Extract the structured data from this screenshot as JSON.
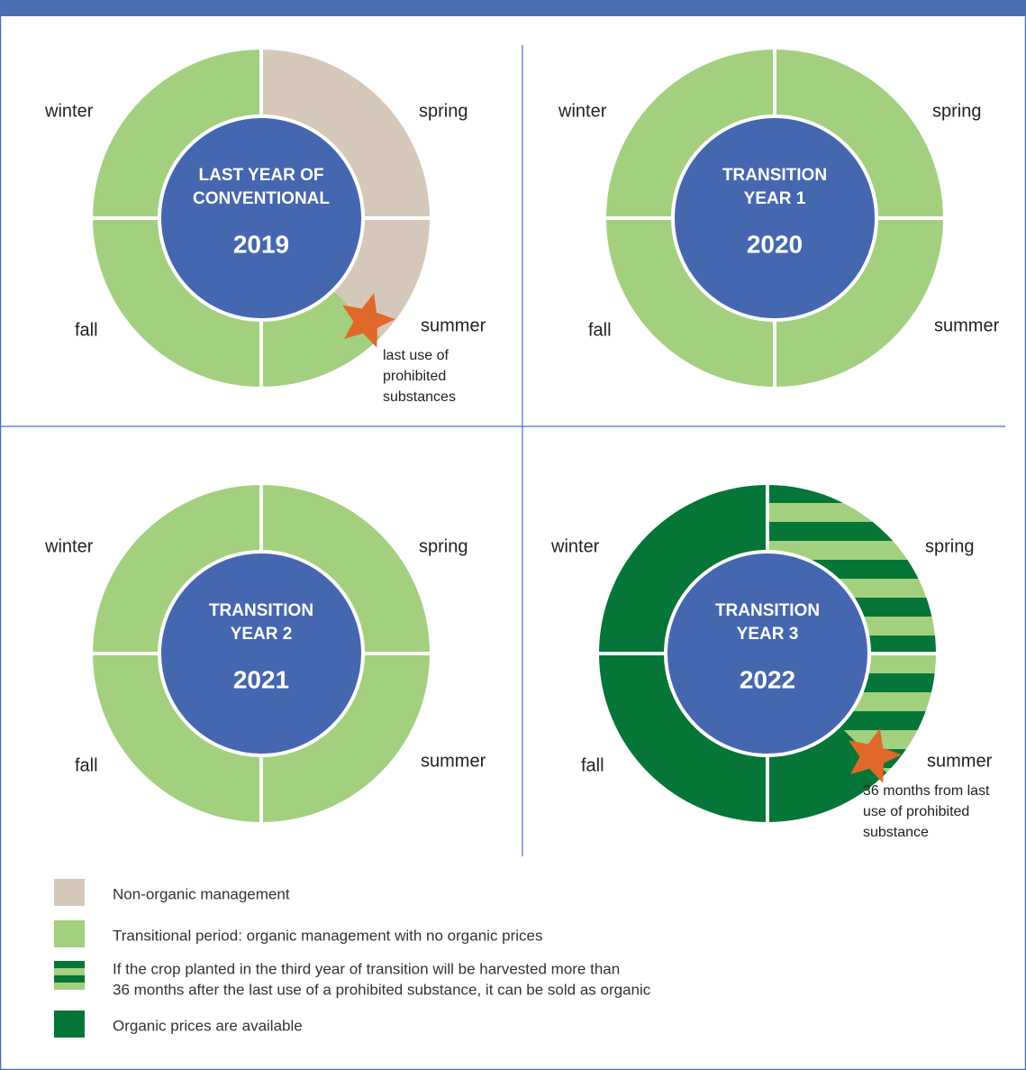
{
  "panels": [
    {
      "title": [
        "LAST YEAR OF",
        "CONVENTIONAL"
      ],
      "year": "2019",
      "seasons": [
        "winter",
        "spring",
        "fall",
        "summer"
      ],
      "note": [
        "last use of",
        "prohibited",
        "substances"
      ]
    },
    {
      "title": [
        "TRANSITION",
        "YEAR 1"
      ],
      "year": "2020",
      "seasons": [
        "winter",
        "spring",
        "fall",
        "summer"
      ]
    },
    {
      "title": [
        "TRANSITION",
        "YEAR 2"
      ],
      "year": "2021",
      "seasons": [
        "winter",
        "spring",
        "fall",
        "summer"
      ]
    },
    {
      "title": [
        "TRANSITION",
        "YEAR 3"
      ],
      "year": "2022",
      "seasons": [
        "winter",
        "spring",
        "fall",
        "summer"
      ],
      "note": [
        "36 months from last",
        "use of prohibited",
        "substance"
      ]
    }
  ],
  "legend": [
    [
      "Non-organic management"
    ],
    [
      "Transitional period: organic management with no organic prices"
    ],
    [
      "If the crop planted in the third year of transition will be harvested more than",
      "36 months after the last use of a prohibited substance, it can be sold as organic"
    ],
    [
      "Organic prices are available"
    ]
  ]
}
